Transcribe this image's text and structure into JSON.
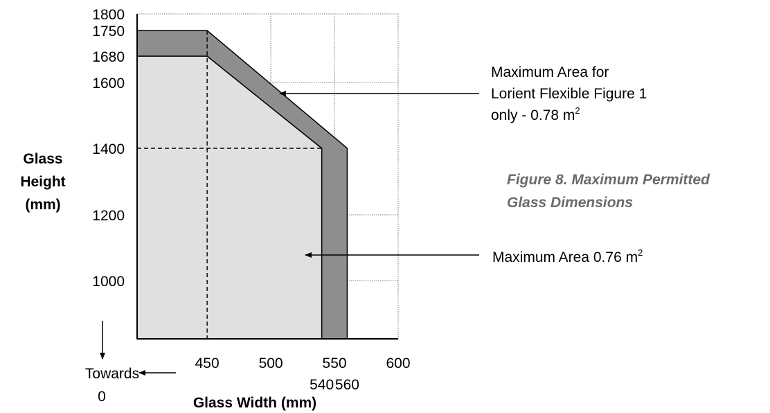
{
  "chart_data": {
    "type": "area",
    "xlabel": "Glass Width (mm)",
    "ylabel_lines": [
      "Glass",
      "Height",
      "(mm)"
    ],
    "x_ticks": [
      "450",
      "500",
      "550",
      "600"
    ],
    "x_ticks_extra": [
      "540",
      "560"
    ],
    "y_ticks": [
      "1000",
      "1200",
      "1400",
      "1600",
      "1680",
      "1750",
      "1800"
    ],
    "xlim": [
      395,
      600
    ],
    "ylim": [
      830,
      1800
    ],
    "grid": true,
    "series": [
      {
        "name": "Maximum Area 0.76 m²",
        "color": "#e0e0e0",
        "points": [
          [
            395,
            1680
          ],
          [
            450,
            1680
          ],
          [
            540,
            1400
          ],
          [
            540,
            830
          ],
          [
            395,
            830
          ]
        ]
      },
      {
        "name": "Maximum Area for Lorient Flexible Figure 1 only - 0.78 m²",
        "color": "#8e8e8e",
        "points": [
          [
            395,
            1680
          ],
          [
            395,
            1750
          ],
          [
            450,
            1750
          ],
          [
            560,
            1400
          ],
          [
            560,
            830
          ],
          [
            540,
            830
          ],
          [
            540,
            1400
          ],
          [
            450,
            1680
          ]
        ]
      }
    ],
    "reference_lines": [
      {
        "axis": "x",
        "value": 450,
        "style": "dashed"
      },
      {
        "axis": "y",
        "value": 1400,
        "style": "dashed"
      }
    ],
    "annotations": {
      "flexible": {
        "line1": "Maximum Area for",
        "line2": "Lorient  Flexible Figure 1",
        "line3": "only - 0.78 m",
        "sup": "2"
      },
      "standard": {
        "text": "Maximum Area 0.76 m",
        "sup": "2"
      },
      "towards": {
        "line1": "Towards",
        "line2": "0"
      }
    },
    "caption": {
      "line1": "Figure 8. Maximum Permitted",
      "line2": "Glass Dimensions"
    }
  }
}
